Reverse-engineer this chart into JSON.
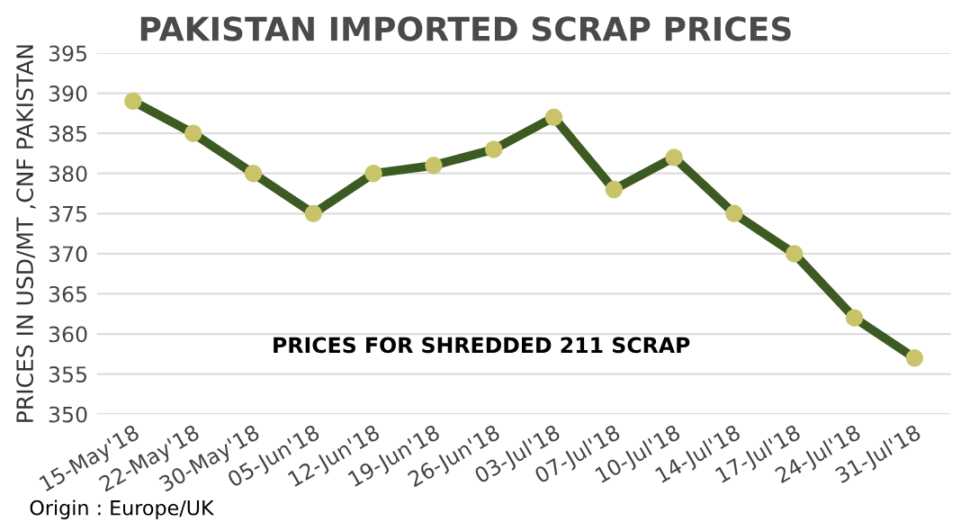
{
  "chart_data": {
    "type": "line",
    "title": "PAKISTAN IMPORTED SCRAP PRICES",
    "ylabel": "PRICES IN USD/MT ,CNF PAKISTAN",
    "categories": [
      "15-May'18",
      "22-May'18",
      "30-May'18",
      "05-Jun'18",
      "12-Jun'18",
      "19-Jun'18",
      "26-Jun'18",
      "03-Jul'18",
      "07-Jul'18",
      "10-Jul'18",
      "14-Jul'18",
      "17-Jul'18",
      "24-Jul'18",
      "31-Jul'18"
    ],
    "series": [
      {
        "color": "#3d5a22",
        "values": [
          389,
          385,
          380,
          375,
          380,
          381,
          383,
          387,
          378,
          382,
          375,
          370,
          362,
          357
        ]
      }
    ],
    "ylim": [
      350,
      395
    ],
    "yticks": [
      350,
      355,
      360,
      365,
      370,
      375,
      380,
      385,
      390,
      395
    ],
    "grid": "y",
    "marker": "circle",
    "line_style": "solid",
    "legend": false,
    "annotations": [
      "PRICES FOR SHREDDED 211 SCRAP",
      "Origin : Europe/UK"
    ]
  }
}
